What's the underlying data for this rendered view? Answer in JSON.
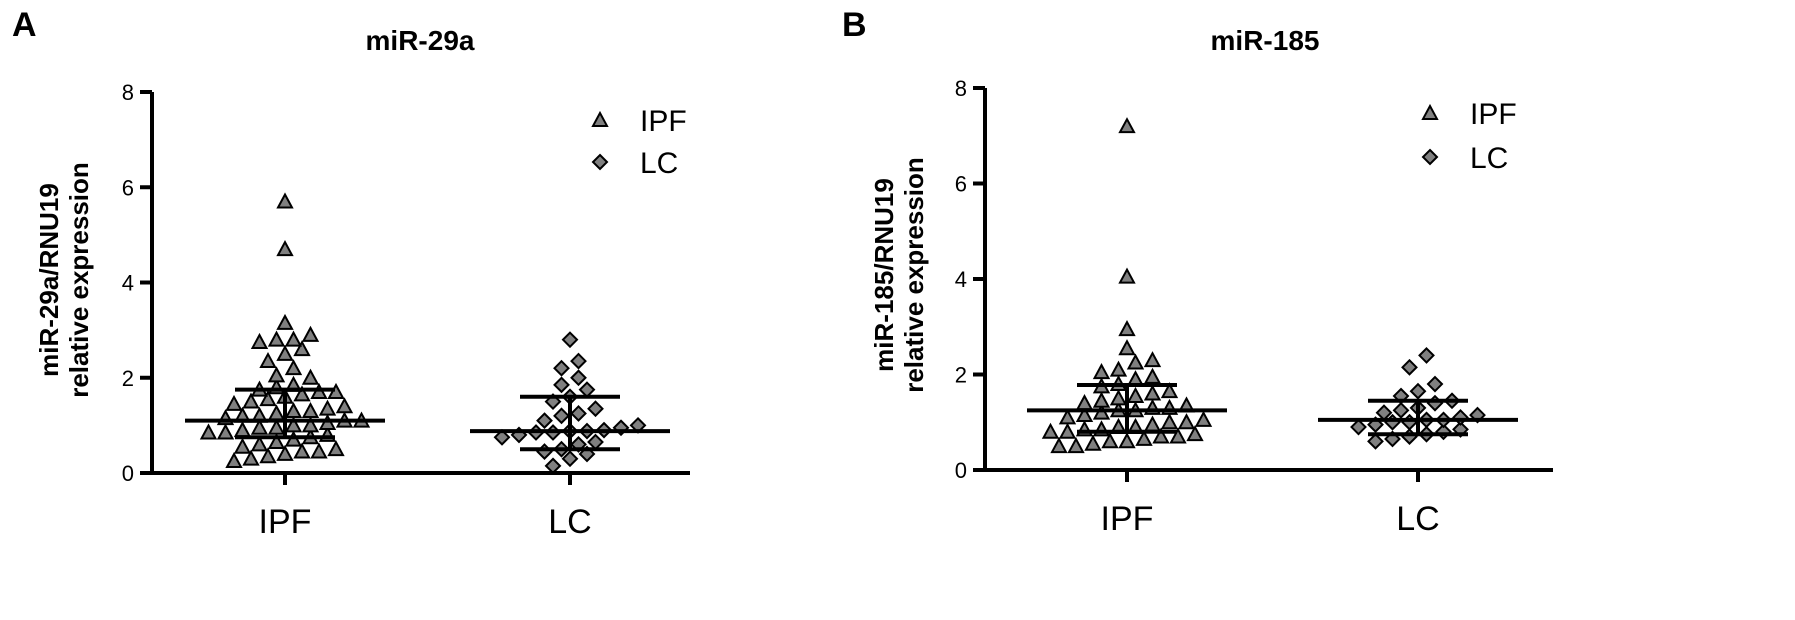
{
  "chart_data": [
    {
      "type": "scatter",
      "panel": "A",
      "title": "miR-29a",
      "ylabel": [
        "miR-29a/RNU19",
        "relative expression"
      ],
      "xlabel": "",
      "categories": [
        "IPF",
        "LC"
      ],
      "ylim": [
        0,
        8
      ],
      "yticks": [
        0,
        2,
        4,
        6,
        8
      ],
      "legend": {
        "position": "top-right",
        "entries": [
          {
            "name": "IPF",
            "marker": "triangle"
          },
          {
            "name": "LC",
            "marker": "diamond"
          }
        ]
      },
      "series": [
        {
          "name": "IPF",
          "marker": "triangle",
          "median": 1.1,
          "q1": 0.75,
          "q3": 1.75,
          "values": [
            5.7,
            4.7,
            3.15,
            2.9,
            2.8,
            2.8,
            2.75,
            2.6,
            2.5,
            2.35,
            2.2,
            2.05,
            2.0,
            1.85,
            1.8,
            1.75,
            1.7,
            1.7,
            1.65,
            1.6,
            1.55,
            1.5,
            1.45,
            1.4,
            1.35,
            1.3,
            1.3,
            1.25,
            1.2,
            1.2,
            1.15,
            1.1,
            1.1,
            1.05,
            1.0,
            1.0,
            0.95,
            0.95,
            0.9,
            0.85,
            0.85,
            0.8,
            0.75,
            0.7,
            0.65,
            0.6,
            0.55,
            0.5,
            0.45,
            0.45,
            0.4,
            0.35,
            0.3,
            0.25
          ]
        },
        {
          "name": "LC",
          "marker": "diamond",
          "median": 0.88,
          "q1": 0.5,
          "q3": 1.6,
          "values": [
            2.8,
            2.35,
            2.2,
            2.0,
            1.85,
            1.75,
            1.6,
            1.5,
            1.35,
            1.25,
            1.2,
            1.1,
            1.0,
            0.95,
            0.9,
            0.88,
            0.88,
            0.85,
            0.85,
            0.8,
            0.75,
            0.65,
            0.6,
            0.5,
            0.45,
            0.4,
            0.3,
            0.15
          ]
        }
      ]
    },
    {
      "type": "scatter",
      "panel": "B",
      "title": "miR-185",
      "ylabel": [
        "miR-185/RNU19",
        "relative expression"
      ],
      "xlabel": "",
      "categories": [
        "IPF",
        "LC"
      ],
      "ylim": [
        0,
        8
      ],
      "yticks": [
        0,
        2,
        4,
        6,
        8
      ],
      "legend": {
        "position": "top-right",
        "entries": [
          {
            "name": "IPF",
            "marker": "triangle"
          },
          {
            "name": "LC",
            "marker": "diamond"
          }
        ]
      },
      "series": [
        {
          "name": "IPF",
          "marker": "triangle",
          "median": 1.25,
          "q1": 0.8,
          "q3": 1.78,
          "values": [
            7.2,
            4.05,
            2.95,
            2.55,
            2.3,
            2.25,
            2.1,
            2.05,
            1.95,
            1.9,
            1.8,
            1.75,
            1.65,
            1.6,
            1.55,
            1.5,
            1.45,
            1.4,
            1.35,
            1.3,
            1.3,
            1.25,
            1.25,
            1.2,
            1.15,
            1.1,
            1.05,
            1.0,
            1.0,
            0.95,
            0.9,
            0.9,
            0.85,
            0.85,
            0.8,
            0.8,
            0.75,
            0.7,
            0.7,
            0.65,
            0.6,
            0.6,
            0.55,
            0.5,
            0.5
          ]
        },
        {
          "name": "LC",
          "marker": "diamond",
          "median": 1.05,
          "q1": 0.75,
          "q3": 1.45,
          "values": [
            2.4,
            2.15,
            1.8,
            1.65,
            1.55,
            1.45,
            1.4,
            1.3,
            1.25,
            1.2,
            1.15,
            1.1,
            1.05,
            1.05,
            1.0,
            1.0,
            0.95,
            0.9,
            0.85,
            0.8,
            0.75,
            0.7,
            0.65,
            0.6
          ]
        }
      ]
    }
  ]
}
